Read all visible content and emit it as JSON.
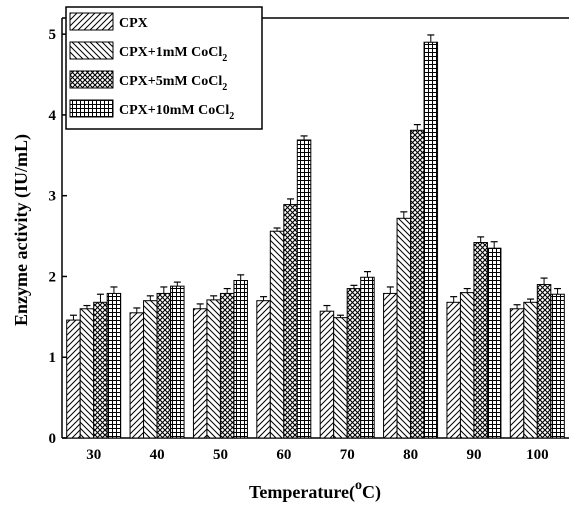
{
  "chart_data": {
    "type": "bar",
    "categories": [
      "30",
      "40",
      "50",
      "60",
      "70",
      "80",
      "90",
      "100"
    ],
    "series": [
      {
        "name": "CPX",
        "name_sub": "",
        "pattern": "diag-forward",
        "values": [
          1.46,
          1.55,
          1.6,
          1.7,
          1.57,
          1.79,
          1.68,
          1.6
        ],
        "errors": [
          0.06,
          0.06,
          0.06,
          0.05,
          0.07,
          0.08,
          0.07,
          0.05
        ]
      },
      {
        "name": "CPX+1mM CoCl",
        "name_sub": "2",
        "pattern": "diag-back",
        "values": [
          1.6,
          1.7,
          1.71,
          2.56,
          1.49,
          2.72,
          1.8,
          1.68
        ],
        "errors": [
          0.04,
          0.06,
          0.05,
          0.04,
          0.03,
          0.08,
          0.05,
          0.04
        ]
      },
      {
        "name": "CPX+5mM CoCl",
        "name_sub": "2",
        "pattern": "crosshatch",
        "values": [
          1.68,
          1.79,
          1.79,
          2.89,
          1.85,
          3.81,
          2.42,
          1.9
        ],
        "errors": [
          0.1,
          0.08,
          0.06,
          0.07,
          0.04,
          0.07,
          0.07,
          0.08
        ]
      },
      {
        "name": "CPX+10mM CoCl",
        "name_sub": "2",
        "pattern": "grid",
        "values": [
          1.79,
          1.88,
          1.95,
          3.69,
          1.99,
          4.9,
          2.35,
          1.78
        ],
        "errors": [
          0.08,
          0.05,
          0.07,
          0.05,
          0.07,
          0.09,
          0.08,
          0.07
        ]
      }
    ],
    "yticks": [
      "0",
      "1",
      "2",
      "3",
      "4",
      "5"
    ],
    "ylim": [
      0,
      5.2
    ],
    "xlabel": "Temperature(",
    "xlabel_sup": "o",
    "xlabel_end": "C)",
    "ylabel": "Enzyme activity (IU/mL)",
    "legend_position": "top-left",
    "colors": {
      "ink": "#000000",
      "fill": "#ffffff"
    }
  }
}
